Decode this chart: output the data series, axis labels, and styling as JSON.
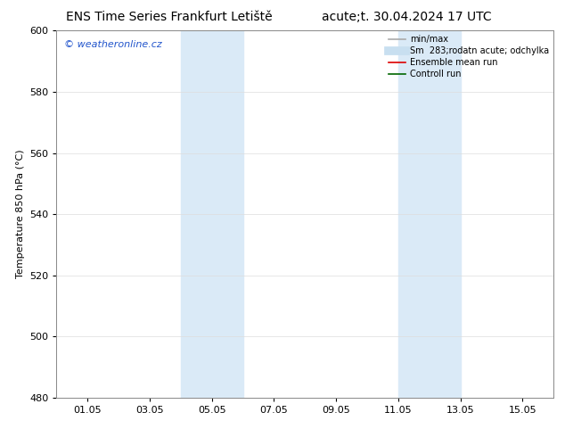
{
  "title_left": "ENS Time Series Frankfurt Letiště",
  "title_right": "acute;t. 30.04.2024 17 UTC",
  "ylabel": "Temperature 850 hPa (°C)",
  "ylim": [
    480,
    600
  ],
  "yticks": [
    480,
    500,
    520,
    540,
    560,
    580,
    600
  ],
  "xtick_labels": [
    "01.05",
    "03.05",
    "05.05",
    "07.05",
    "09.05",
    "11.05",
    "13.05",
    "15.05"
  ],
  "xtick_positions": [
    1,
    3,
    5,
    7,
    9,
    11,
    13,
    15
  ],
  "xlim": [
    0,
    16
  ],
  "shade_regions": [
    {
      "start": 4.0,
      "end": 6.0,
      "color": "#daeaf7"
    },
    {
      "start": 11.0,
      "end": 13.0,
      "color": "#daeaf7"
    }
  ],
  "watermark_text": "© weatheronline.cz",
  "watermark_color": "#2255cc",
  "legend_entries": [
    {
      "label": "min/max",
      "color": "#aaaaaa",
      "lw": 1.2,
      "style": "solid"
    },
    {
      "label": "Sm  283;rodatn acute; odchylka",
      "color": "#c8dff0",
      "lw": 7,
      "style": "solid"
    },
    {
      "label": "Ensemble mean run",
      "color": "#dd0000",
      "lw": 1.2,
      "style": "solid"
    },
    {
      "label": "Controll run",
      "color": "#006600",
      "lw": 1.2,
      "style": "solid"
    }
  ],
  "bg_color": "#ffffff",
  "grid_color": "#dddddd",
  "title_fontsize": 10,
  "tick_fontsize": 8,
  "ylabel_fontsize": 8,
  "legend_fontsize": 7
}
